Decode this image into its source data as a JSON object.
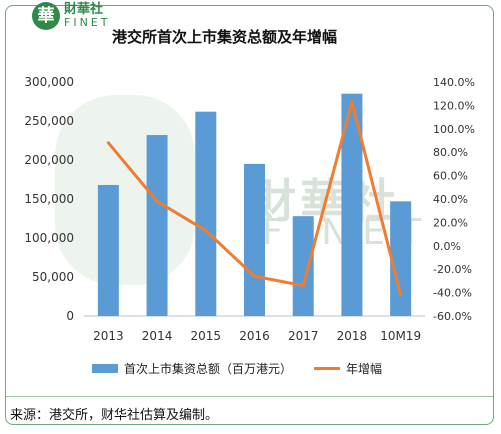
{
  "logo": {
    "mark": "華",
    "cn": "財華社",
    "en": "FINET"
  },
  "title": "港交所首次上市集资总额及年增幅",
  "watermark": {
    "cn": "財華社",
    "en": "FINET"
  },
  "source": "来源：港交所，财华社估算及编制。",
  "colors": {
    "bar": "#5b9bd5",
    "line": "#ed7d31",
    "frame": "#6fa97c",
    "brand": "#2f8a4a"
  },
  "chart_data": {
    "type": "bar",
    "title": "港交所首次上市集资总额及年增幅",
    "categories": [
      "2013",
      "2014",
      "2015",
      "2016",
      "2017",
      "2018",
      "10M19"
    ],
    "series": [
      {
        "name": "首次上市集资总额（百万港元）",
        "type": "bar",
        "axis": "left",
        "values": [
          168000,
          232000,
          262000,
          195000,
          128000,
          285000,
          147000
        ]
      },
      {
        "name": "年增幅",
        "type": "line",
        "axis": "right",
        "unit": "%",
        "values": [
          88,
          38,
          13,
          -26,
          -34,
          123,
          -42
        ]
      }
    ],
    "y_left": {
      "min": 0,
      "max": 300000,
      "ticks": [
        "0",
        "50,000",
        "100,000",
        "150,000",
        "200,000",
        "250,000",
        "300,000"
      ]
    },
    "y_right": {
      "min": -60,
      "max": 140,
      "ticks": [
        "-60.0%",
        "-40.0%",
        "-20.0%",
        "0.0%",
        "20.0%",
        "40.0%",
        "60.0%",
        "80.0%",
        "100.0%",
        "120.0%",
        "140.0%"
      ]
    },
    "legend": {
      "position": "bottom"
    },
    "grid": false
  }
}
